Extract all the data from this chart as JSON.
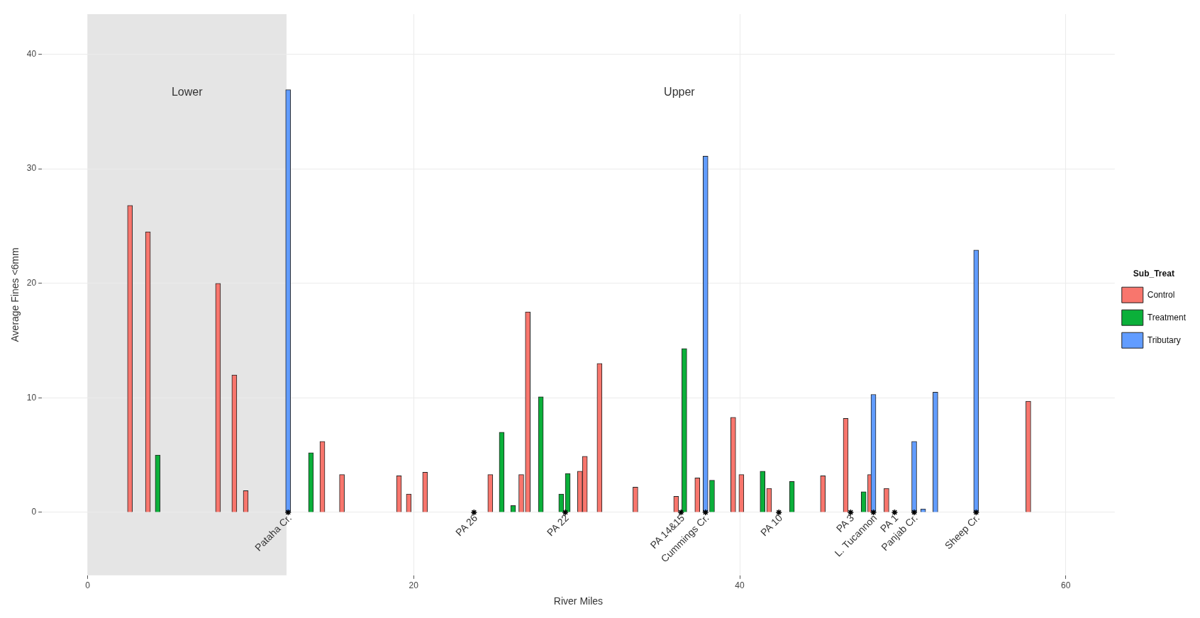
{
  "chart_data": {
    "type": "bar",
    "xlabel": "River Miles",
    "ylabel": "Average Fines <6mm",
    "legend_title": "Sub_Treat",
    "legend": "right",
    "grid": true,
    "xlim": [
      -2.8,
      63
    ],
    "ylim": [
      -5.5,
      43.5
    ],
    "xticks": [
      0,
      20,
      40,
      60
    ],
    "yticks": [
      0,
      10,
      20,
      30,
      40
    ],
    "bands": [
      {
        "axis": "x",
        "from": 0,
        "to": 12.2,
        "label": "Lower",
        "color": "#e5e5e5"
      }
    ],
    "series": [
      {
        "name": "Control",
        "color": "#f8766d",
        "x": [
          2.6,
          3.7,
          8.0,
          9.0,
          9.7,
          14.4,
          15.6,
          19.1,
          19.7,
          20.7,
          24.7,
          26.6,
          27.0,
          30.2,
          30.5,
          31.4,
          33.6,
          36.1,
          37.4,
          39.6,
          40.1,
          41.8,
          45.1,
          46.5,
          48.0,
          49.0,
          57.7
        ],
        "values": [
          26.8,
          24.5,
          20.0,
          12.0,
          1.9,
          6.2,
          3.3,
          3.2,
          1.6,
          3.5,
          3.3,
          3.3,
          17.5,
          3.6,
          4.9,
          13.0,
          2.2,
          1.4,
          3.0,
          8.3,
          3.3,
          2.1,
          3.2,
          8.2,
          3.3,
          2.1,
          9.7
        ]
      },
      {
        "name": "Treatment",
        "color": "#0bb03a",
        "x": [
          4.3,
          13.7,
          25.4,
          26.1,
          27.8,
          29.05,
          29.45,
          36.6,
          38.3,
          41.4,
          43.2,
          47.6
        ],
        "values": [
          5.0,
          5.2,
          7.0,
          0.6,
          10.1,
          1.6,
          3.4,
          14.3,
          2.8,
          3.6,
          2.7,
          1.8
        ]
      },
      {
        "name": "Tributary",
        "color": "#619cff",
        "x": [
          12.3,
          37.9,
          48.2,
          50.7,
          51.25,
          52.0,
          54.5
        ],
        "values": [
          36.9,
          31.1,
          10.3,
          6.2,
          0.3,
          10.5,
          22.9
        ]
      },
      {
        "type": "scatter",
        "marker": "cross",
        "color": "#000000",
        "x": [
          12.3,
          23.7,
          29.3,
          36.4,
          37.9,
          42.4,
          46.8,
          48.2,
          49.5,
          50.7,
          54.5
        ],
        "values": [
          0,
          0,
          0,
          0,
          0,
          0,
          0,
          0,
          0,
          0,
          0
        ]
      }
    ],
    "annotations": [
      "Upper",
      {
        "text": "Pataha Cr.",
        "x": 12.3,
        "y": 0
      },
      {
        "text": "PA 26",
        "x": 23.7,
        "y": 0
      },
      {
        "text": "PA 22",
        "x": 29.3,
        "y": 0
      },
      {
        "text": "PA 14&15",
        "x": 36.4,
        "y": 0
      },
      {
        "text": "Cummings Cr.",
        "x": 37.9,
        "y": 0
      },
      {
        "text": "PA 10",
        "x": 42.4,
        "y": 0
      },
      {
        "text": "PA 3",
        "x": 46.8,
        "y": 0
      },
      {
        "text": "L. Tucannon",
        "x": 48.2,
        "y": 0
      },
      {
        "text": "PA 1",
        "x": 49.5,
        "y": 0
      },
      {
        "text": "Panjab Cr.",
        "x": 50.7,
        "y": 0
      },
      {
        "text": "Sheep Cr.",
        "x": 54.5,
        "y": 0
      }
    ]
  }
}
